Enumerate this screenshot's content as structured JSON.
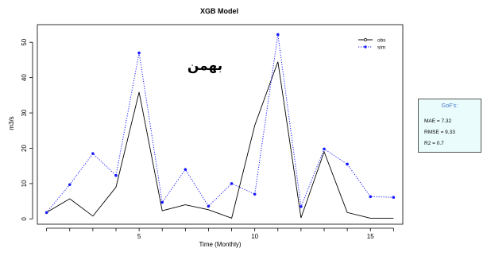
{
  "chart_data": {
    "type": "line",
    "title": "XGB Model",
    "xlabel": "Time (Monthly)",
    "ylabel": "m3/s",
    "annotation": "بهمن",
    "xlim": [
      0.6,
      16.4
    ],
    "ylim": [
      -1.5,
      55
    ],
    "x_ticks": [
      5,
      10,
      15
    ],
    "y_ticks": [
      0,
      10,
      20,
      30,
      40,
      50
    ],
    "grid": false,
    "legend_position": "top-right",
    "x": [
      1,
      2,
      3,
      4,
      5,
      6,
      7,
      8,
      9,
      10,
      11,
      12,
      13,
      14,
      15,
      16
    ],
    "series": [
      {
        "name": "obs",
        "style": "solid",
        "color": "#000000",
        "marker": "none",
        "values": [
          1.8,
          5.7,
          0.8,
          9.0,
          35.9,
          2.3,
          4.0,
          2.6,
          0.2,
          26.5,
          44.5,
          0.3,
          19.0,
          1.8,
          0.2,
          0.2
        ]
      },
      {
        "name": "sim",
        "style": "dotted",
        "color": "#1a1aff",
        "marker": "circle",
        "values": [
          1.8,
          9.7,
          18.5,
          12.3,
          47.0,
          4.7,
          14.0,
          3.6,
          10.0,
          7.0,
          52.2,
          3.5,
          19.8,
          15.5,
          6.3,
          6.1
        ]
      }
    ],
    "gof": {
      "title": "GoF's:",
      "lines": [
        "MAE = 7.32",
        "RMSE = 9.33",
        "R2 = 0.7"
      ]
    }
  }
}
